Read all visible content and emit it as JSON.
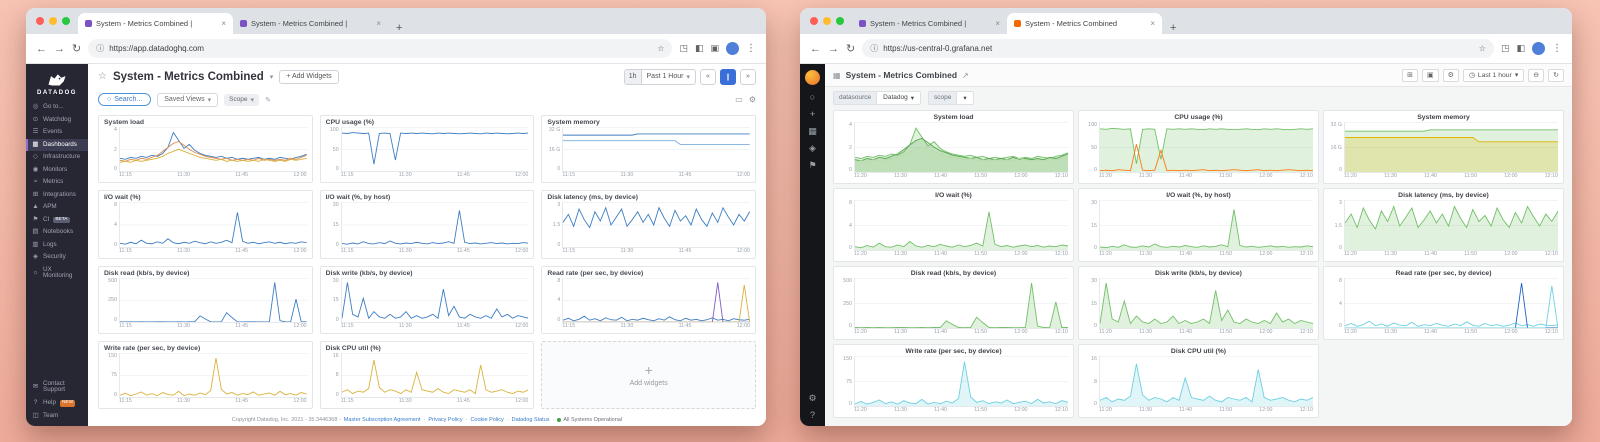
{
  "shared": {
    "xticks_dd": [
      "11:15",
      "11:30",
      "11:45",
      "12:00"
    ],
    "xticks_gf": [
      "11:20",
      "11:30",
      "11:40",
      "11:50",
      "12:00",
      "12:10"
    ],
    "new_tab": "+",
    "tab_close": "×"
  },
  "browser": {
    "back": "←",
    "forward": "→",
    "reload": "↻",
    "info": "ⓘ",
    "star": "☆",
    "ext1": "◳",
    "ext2": "◧",
    "ext3": "▣",
    "menu": "⋮"
  },
  "charts": [
    {
      "id": "system-load",
      "title": "System load",
      "ymax": 4,
      "yticks": [
        "4",
        "2",
        "0"
      ],
      "series": [
        {
          "dd": "#3d7dc2",
          "gf": "#73bf69",
          "gfill": true,
          "values": [
            1.3,
            1.2,
            1.4,
            1.3,
            1.5,
            1.4,
            1.6,
            1.5,
            1.8,
            2.4,
            3.9,
            3.1,
            2.3,
            2.7,
            2.1,
            1.8,
            1.6,
            1.5,
            1.4,
            1.5,
            1.3,
            1.4,
            1.2,
            1.3,
            1.2,
            1.3,
            1.4,
            1.2,
            1.3,
            1.2,
            1.4,
            1.3,
            1.2,
            1.4,
            1.5,
            1.7
          ]
        },
        {
          "dd": "#e08a4c",
          "gf": "#56a64b",
          "gfill": true,
          "values": [
            1.1,
            1.0,
            1.2,
            1.1,
            1.3,
            1.2,
            1.4,
            1.6,
            2.0,
            2.4,
            2.8,
            3.0,
            2.6,
            2.2,
            1.9,
            1.7,
            1.5,
            1.4,
            1.3,
            1.2,
            1.3,
            1.1,
            1.2,
            1.1,
            1.2,
            1.1,
            1.3,
            1.1,
            1.2,
            1.1,
            1.2,
            1.1,
            1.3,
            1.2,
            1.4,
            1.6
          ]
        },
        {
          "dd": "#d9b23c",
          "gf": "#b7dbab",
          "gfill": true,
          "values": [
            0.9,
            1.0,
            0.9,
            1.1,
            1.0,
            1.1,
            1.2,
            1.3,
            1.5,
            1.8,
            2.0,
            2.2,
            2.0,
            1.8,
            1.6,
            1.4,
            1.3,
            1.2,
            1.1,
            1.2,
            1.0,
            1.1,
            1.0,
            1.1,
            1.0,
            1.1,
            1.0,
            1.2,
            1.1,
            1.0,
            1.1,
            1.0,
            1.2,
            1.1,
            1.2,
            1.3
          ]
        }
      ]
    },
    {
      "id": "cpu-usage",
      "title": "CPU usage (%)",
      "ymax": 100,
      "yticks": [
        "100",
        "50",
        "0"
      ],
      "series": [
        {
          "dd": "#3d7dc2",
          "gf": "#73bf69",
          "gfill": true,
          "values": [
            96,
            95,
            97,
            96,
            95,
            96,
            18,
            95,
            96,
            95,
            28,
            96,
            95,
            96,
            95,
            96,
            95,
            94,
            96,
            95,
            96,
            95,
            94,
            95,
            96,
            95,
            94,
            96,
            95,
            96,
            95,
            94,
            95,
            96,
            95,
            96
          ]
        },
        {
          "only": "gf",
          "dd": "#ff780a",
          "gf": "#ff780a",
          "gfill": false,
          "values": [
            3,
            4,
            3,
            5,
            4,
            3,
            62,
            4,
            3,
            4,
            48,
            3,
            4,
            3,
            4,
            3,
            4,
            5,
            3,
            4,
            3,
            4,
            5,
            4,
            3,
            4,
            5,
            3,
            4,
            3,
            4,
            5,
            4,
            3,
            4,
            3
          ]
        }
      ]
    },
    {
      "id": "system-memory",
      "title": "System memory",
      "ymax": 32,
      "yticks": [
        "32 G",
        "16 G",
        "0"
      ],
      "series": [
        {
          "dd": "#3d7dc2",
          "gf": "#73bf69",
          "gfill": true,
          "values": [
            29,
            29,
            29,
            29,
            29,
            29,
            29,
            29,
            29,
            29,
            29,
            29,
            29,
            29,
            30,
            30,
            30,
            30,
            30,
            30,
            30,
            30,
            30,
            30,
            30,
            30,
            30,
            30,
            30,
            30,
            30,
            30,
            30,
            30,
            30,
            30
          ]
        },
        {
          "dd": "#79aede",
          "gf": "#e0b400",
          "gfill": true,
          "values": [
            24.5,
            24.5,
            24.5,
            24.5,
            24.5,
            24.5,
            24.5,
            24.5,
            24.5,
            24.5,
            24.5,
            24.5,
            24.5,
            24.5,
            24.5,
            24.5,
            24.5,
            24.5,
            24.5,
            24.5,
            24.5,
            24.5,
            21.5,
            21.5,
            21.5,
            21.5,
            21.5,
            21.5,
            21.5,
            21.5,
            21.5,
            21.5,
            21.5,
            21.5,
            21.5,
            21.5
          ]
        }
      ]
    },
    {
      "id": "io-wait",
      "title": "I/O wait (%)",
      "ymax": 8,
      "yticks": [
        "8",
        "4",
        "0"
      ],
      "series": [
        {
          "dd": "#3d7dc2",
          "gf": "#73bf69",
          "gfill": true,
          "values": [
            0.6,
            0.4,
            0.8,
            0.5,
            1.2,
            0.6,
            0.5,
            0.9,
            0.6,
            1.5,
            0.7,
            0.5,
            0.8,
            0.6,
            1.0,
            0.7,
            0.5,
            0.9,
            0.6,
            0.8,
            1.2,
            0.7,
            6.8,
            1.0,
            0.6,
            0.8,
            0.5,
            0.7,
            0.9,
            0.6,
            0.8,
            0.5,
            0.7,
            0.6,
            0.9,
            0.7
          ]
        }
      ]
    },
    {
      "id": "io-wait-by-host",
      "title": "I/O wait (%, by host)",
      "ymax": 30,
      "yticks": [
        "30",
        "15",
        "0"
      ],
      "series": [
        {
          "dd": "#3d7dc2",
          "gf": "#73bf69",
          "gfill": true,
          "values": [
            2,
            1.5,
            2.5,
            1.8,
            3.5,
            2,
            1.8,
            2.8,
            2,
            4,
            2.2,
            1.8,
            2.5,
            2,
            3,
            2.2,
            1.8,
            2.8,
            2,
            2.5,
            3.5,
            2.2,
            27,
            3,
            2,
            2.5,
            1.8,
            2.2,
            2.8,
            2,
            2.5,
            1.8,
            2.2,
            2,
            2.8,
            2.2
          ]
        }
      ]
    },
    {
      "id": "disk-latency",
      "title": "Disk latency (ms, by device)",
      "ymax": 3,
      "yticks": [
        "3",
        "1.5",
        "0"
      ],
      "series": [
        {
          "dd": "#3d7dc2",
          "gf": "#73bf69",
          "gfill": true,
          "values": [
            1.8,
            2.4,
            1.5,
            2.8,
            2.0,
            1.4,
            2.6,
            1.9,
            2.9,
            1.6,
            2.2,
            2.8,
            1.5,
            2.0,
            2.6,
            1.8,
            2.4,
            1.6,
            2.9,
            2.1,
            1.5,
            2.7,
            1.9,
            2.3,
            1.6,
            2.8,
            2.0,
            1.5,
            2.5,
            1.8,
            2.9,
            2.2,
            1.6,
            2.4,
            1.9,
            2.6
          ]
        }
      ]
    },
    {
      "id": "disk-read",
      "title": "Disk read (kb/s, by device)",
      "ymax": 500,
      "yticks": [
        "500",
        "250",
        "0"
      ],
      "series": [
        {
          "dd": "#3d7dc2",
          "gf": "#73bf69",
          "gfill": true,
          "values": [
            5,
            3,
            6,
            4,
            5,
            3,
            4,
            6,
            5,
            4,
            3,
            5,
            4,
            6,
            5,
            80,
            40,
            5,
            4,
            6,
            120,
            60,
            5,
            4,
            6,
            5,
            4,
            3,
            5,
            500,
            20,
            5,
            4,
            290,
            6,
            5
          ]
        }
      ]
    },
    {
      "id": "disk-write",
      "title": "Disk write (kb/s, by device)",
      "ymax": 30,
      "yticks": [
        "30",
        "15",
        "0"
      ],
      "series": [
        {
          "dd": "#3d7dc2",
          "gf": "#73bf69",
          "gfill": true,
          "values": [
            3,
            30,
            6,
            4,
            18,
            3,
            8,
            4,
            3,
            6,
            3,
            4,
            8,
            3,
            5,
            3,
            4,
            6,
            3,
            25,
            5,
            12,
            4,
            3,
            6,
            4,
            3,
            5,
            3,
            10,
            4,
            6,
            3,
            5,
            4,
            3
          ]
        }
      ]
    },
    {
      "id": "read-rate",
      "title": "Read rate (per sec, by device)",
      "ymax": 8,
      "yticks": [
        "8",
        "4",
        "0"
      ],
      "series": [
        {
          "dd": "#3d7dc2",
          "gf": "#6ed0e0",
          "gfill": false,
          "values": [
            0.4,
            0.8,
            0.3,
            0.6,
            1.2,
            0.4,
            0.7,
            0.3,
            0.9,
            0.5,
            0.4,
            1.0,
            0.3,
            0.6,
            0.4,
            0.8,
            0.5,
            0.3,
            0.7,
            0.4,
            1.1,
            0.5,
            0.3,
            0.8,
            0.4,
            0.6,
            0.3,
            0.5,
            0.9,
            0.4,
            0.6,
            0.3,
            0.7,
            0.5,
            0.4,
            0.6
          ]
        },
        {
          "dd": "#7d5cc6",
          "gf": "#1f60c4",
          "gfill": false,
          "values": [
            0,
            0,
            0,
            0,
            0,
            0,
            0,
            0,
            0,
            0,
            0,
            0,
            0,
            0,
            0,
            0,
            0,
            0,
            0,
            0,
            0,
            0,
            0,
            0,
            0,
            0,
            0,
            0,
            0,
            8,
            0,
            0,
            0,
            0,
            0,
            0
          ]
        },
        {
          "dd": "#d9b23c",
          "gf": "#6ed0e0",
          "gfill": false,
          "values": [
            0,
            0,
            0,
            0,
            0,
            0,
            0,
            0,
            0,
            0,
            0,
            0,
            0,
            0,
            0,
            0,
            0,
            0,
            0,
            0,
            0,
            0,
            0,
            0,
            0,
            0,
            0,
            0,
            0,
            0,
            0,
            0,
            0,
            0,
            7.5,
            0
          ]
        }
      ]
    },
    {
      "id": "write-rate",
      "title": "Write rate (per sec, by device)",
      "ymax": 150,
      "yticks": [
        "150",
        "75",
        "0"
      ],
      "series": [
        {
          "dd": "#d9b23c",
          "gf": "#6ed0e0",
          "gfill": true,
          "values": [
            8,
            15,
            6,
            12,
            20,
            8,
            14,
            6,
            18,
            10,
            8,
            22,
            6,
            12,
            8,
            16,
            10,
            25,
            148,
            30,
            12,
            18,
            8,
            14,
            10,
            20,
            8,
            12,
            16,
            8,
            22,
            10,
            14,
            8,
            18,
            12
          ]
        }
      ]
    },
    {
      "id": "disk-cpu-util",
      "title": "Disk CPU util (%)",
      "ymax": 16,
      "yticks": [
        "16",
        "8",
        "0"
      ],
      "series": [
        {
          "dd": "#d9b23c",
          "gf": "#6ed0e0",
          "gfill": true,
          "values": [
            2,
            3,
            1.5,
            2.5,
            2,
            3.5,
            15,
            4,
            2,
            3,
            2.5,
            1.5,
            3,
            2,
            10,
            3,
            2.5,
            2,
            3.5,
            2,
            1.5,
            3,
            2.5,
            2,
            3,
            1.5,
            13,
            3,
            2,
            2.5,
            3,
            2,
            1.5,
            2.5,
            2,
            3
          ]
        }
      ]
    }
  ],
  "datadog": {
    "url": "https://app.datadoghq.com",
    "tabs": [
      {
        "title": "System - Metrics Combined |",
        "active": true,
        "fav": "#7a52c4"
      },
      {
        "title": "System - Metrics Combined |",
        "active": false,
        "fav": "#7a52c4"
      }
    ],
    "sidebar": {
      "logo_text": "DATADOG",
      "items": [
        {
          "label": "Go to...",
          "icon": "◎"
        },
        {
          "label": "Watchdog",
          "icon": "⊙"
        },
        {
          "label": "Events",
          "icon": "☰"
        },
        {
          "label": "Dashboards",
          "icon": "▦",
          "active": true
        },
        {
          "label": "Infrastructure",
          "icon": "◇"
        },
        {
          "label": "Monitors",
          "icon": "◉"
        },
        {
          "label": "Metrics",
          "icon": "≈"
        },
        {
          "label": "Integrations",
          "icon": "⊞"
        },
        {
          "label": "APM",
          "icon": "▲"
        },
        {
          "label": "CI",
          "icon": "⚑",
          "badge": "BETA",
          "badge_color": "#5b5e73"
        },
        {
          "label": "Notebooks",
          "icon": "▤"
        },
        {
          "label": "Logs",
          "icon": "▥"
        },
        {
          "label": "Security",
          "icon": "◈"
        },
        {
          "label": "UX Monitoring",
          "icon": "☼"
        }
      ],
      "bottom_items": [
        {
          "label": "Contact Support",
          "icon": "✉"
        },
        {
          "label": "Help",
          "icon": "?",
          "badge": "NEW",
          "badge_color": "#d8742c"
        },
        {
          "label": "Team",
          "icon": "◫"
        }
      ]
    },
    "header": {
      "star": "☆",
      "title": "System - Metrics Combined",
      "caret": "▾",
      "add_widgets": "+ Add Widgets",
      "time_short": "1h",
      "time_label": "Past 1 Hour",
      "rw": "«",
      "pause": "∥",
      "ff": "»"
    },
    "filter": {
      "search_icon": "○",
      "search": "Search...",
      "saved_views": "Saved Views",
      "scope": "Scope",
      "pencil": "✎",
      "tv_icon": "▭",
      "gear_icon": "⚙"
    },
    "add_widgets_placeholder": "Add widgets",
    "add_plus": "+",
    "footer": {
      "copyright": "Copyright Datadog, Inc. 2021 - 35.3446368 -",
      "links": [
        "Master Subscription Agreement",
        "Privacy Policy",
        "Cookie Policy",
        "Datadog Status"
      ],
      "sep": "·",
      "status": "All Systems Operational"
    }
  },
  "grafana": {
    "url": "https://us-central-0.grafana.net",
    "tabs": [
      {
        "title": "System - Metrics Combined |",
        "active": false,
        "fav": "#7a52c4"
      },
      {
        "title": "System - Metrics Combined",
        "active": true,
        "fav": "#f46800"
      }
    ],
    "rail_top": [
      {
        "name": "search-icon",
        "glyph": "○"
      },
      {
        "name": "create-icon",
        "glyph": "+"
      },
      {
        "name": "dashboards-icon",
        "glyph": "▦"
      },
      {
        "name": "explore-icon",
        "glyph": "◈"
      },
      {
        "name": "alerts-icon",
        "glyph": "⚑"
      }
    ],
    "rail_bottom": [
      {
        "name": "configuration-icon",
        "glyph": "⚙"
      },
      {
        "name": "help-icon",
        "glyph": "?"
      }
    ],
    "topbar": {
      "title": "System - Metrics Combined",
      "time_label": "Last 1 hour"
    },
    "icons": {
      "dash": "▦",
      "share": "↗",
      "addpanel": "⊞",
      "save": "▣",
      "gear": "⚙",
      "clock": "◷",
      "caret": "▾",
      "zoom": "⊖",
      "refresh": "↻"
    },
    "submenu": {
      "datasource_label": "datasource",
      "datasource_value": "Datadog",
      "scope_label": "scope"
    }
  }
}
